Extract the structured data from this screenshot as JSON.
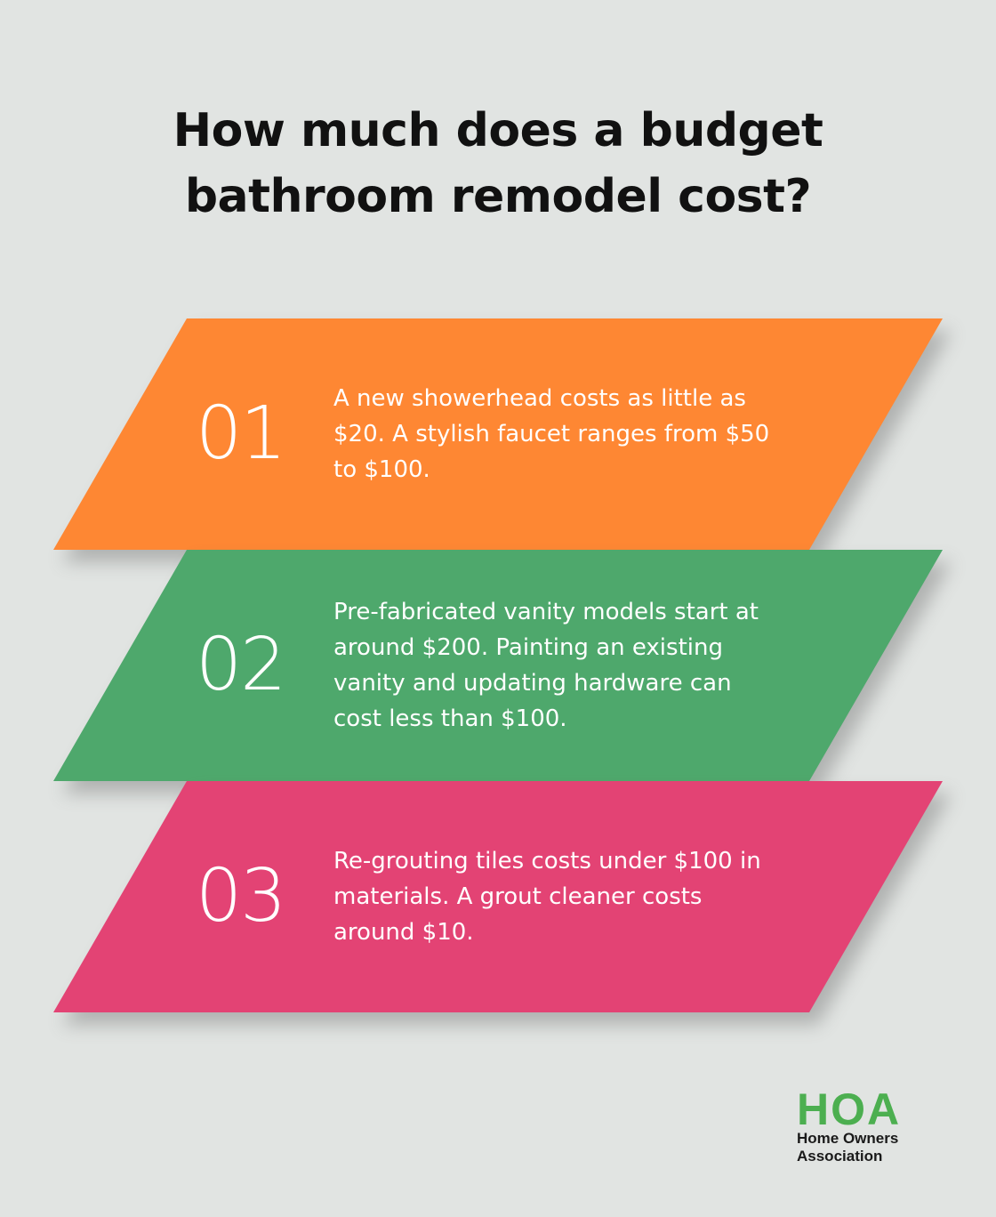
{
  "title": {
    "line1": "How much does a budget",
    "line2": "bathroom remodel cost?"
  },
  "cards": [
    {
      "number": "01",
      "color": "#fe8733",
      "lines": [
        "A new showerhead costs as little as",
        "$20. A stylish faucet ranges from $50",
        "to $100."
      ]
    },
    {
      "number": "02",
      "color": "#4ea86c",
      "lines": [
        "Pre-fabricated vanity models start at",
        "around $200. Painting an existing",
        "vanity and updating hardware can",
        "cost less than $100."
      ]
    },
    {
      "number": "03",
      "color": "#e34374",
      "lines": [
        "Re-grouting tiles costs under $100 in",
        "materials. A grout cleaner costs",
        "around $10."
      ]
    }
  ],
  "logo": {
    "mark": "HOA",
    "line1": "Home Owners",
    "line2": "Association",
    "color": "#4caf50"
  }
}
